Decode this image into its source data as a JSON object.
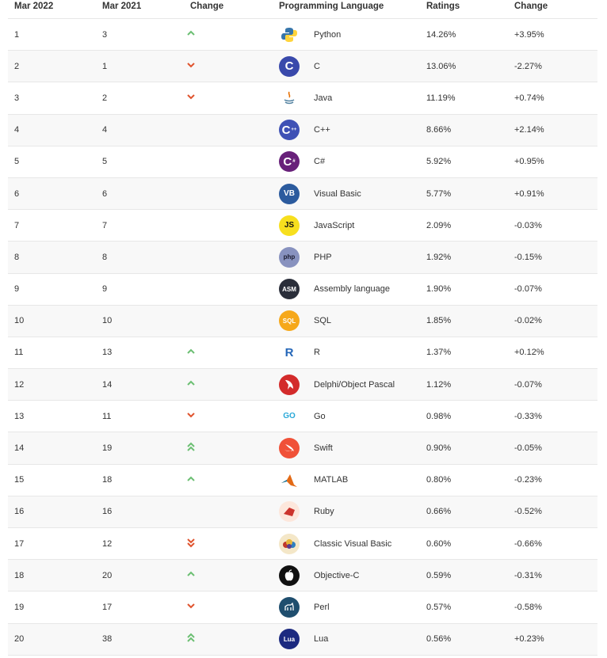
{
  "headers": [
    "Mar 2022",
    "Mar 2021",
    "Change",
    "Programming Language",
    "Ratings",
    "Change"
  ],
  "colors": {
    "up": "#6cbf73",
    "down": "#e0542e"
  },
  "rows": [
    {
      "now": "1",
      "prev": "3",
      "dir": "up",
      "lang": "Python",
      "rating": "14.26%",
      "change": "+3.95%",
      "icon": "python-logo-icon"
    },
    {
      "now": "2",
      "prev": "1",
      "dir": "down",
      "lang": "C",
      "rating": "13.06%",
      "change": "-2.27%",
      "icon": "c-logo-icon"
    },
    {
      "now": "3",
      "prev": "2",
      "dir": "down",
      "lang": "Java",
      "rating": "11.19%",
      "change": "+0.74%",
      "icon": "java-logo-icon"
    },
    {
      "now": "4",
      "prev": "4",
      "dir": "none",
      "lang": "C++",
      "rating": "8.66%",
      "change": "+2.14%",
      "icon": "cpp-logo-icon"
    },
    {
      "now": "5",
      "prev": "5",
      "dir": "none",
      "lang": "C#",
      "rating": "5.92%",
      "change": "+0.95%",
      "icon": "csharp-logo-icon"
    },
    {
      "now": "6",
      "prev": "6",
      "dir": "none",
      "lang": "Visual Basic",
      "rating": "5.77%",
      "change": "+0.91%",
      "icon": "visual-basic-logo-icon"
    },
    {
      "now": "7",
      "prev": "7",
      "dir": "none",
      "lang": "JavaScript",
      "rating": "2.09%",
      "change": "-0.03%",
      "icon": "javascript-logo-icon"
    },
    {
      "now": "8",
      "prev": "8",
      "dir": "none",
      "lang": "PHP",
      "rating": "1.92%",
      "change": "-0.15%",
      "icon": "php-logo-icon"
    },
    {
      "now": "9",
      "prev": "9",
      "dir": "none",
      "lang": "Assembly language",
      "rating": "1.90%",
      "change": "-0.07%",
      "icon": "assembly-logo-icon"
    },
    {
      "now": "10",
      "prev": "10",
      "dir": "none",
      "lang": "SQL",
      "rating": "1.85%",
      "change": "-0.02%",
      "icon": "sql-logo-icon"
    },
    {
      "now": "11",
      "prev": "13",
      "dir": "up",
      "lang": "R",
      "rating": "1.37%",
      "change": "+0.12%",
      "icon": "r-logo-icon"
    },
    {
      "now": "12",
      "prev": "14",
      "dir": "up",
      "lang": "Delphi/Object Pascal",
      "rating": "1.12%",
      "change": "-0.07%",
      "icon": "delphi-logo-icon"
    },
    {
      "now": "13",
      "prev": "11",
      "dir": "down",
      "lang": "Go",
      "rating": "0.98%",
      "change": "-0.33%",
      "icon": "go-logo-icon"
    },
    {
      "now": "14",
      "prev": "19",
      "dir": "up2",
      "lang": "Swift",
      "rating": "0.90%",
      "change": "-0.05%",
      "icon": "swift-logo-icon"
    },
    {
      "now": "15",
      "prev": "18",
      "dir": "up",
      "lang": "MATLAB",
      "rating": "0.80%",
      "change": "-0.23%",
      "icon": "matlab-logo-icon"
    },
    {
      "now": "16",
      "prev": "16",
      "dir": "none",
      "lang": "Ruby",
      "rating": "0.66%",
      "change": "-0.52%",
      "icon": "ruby-logo-icon"
    },
    {
      "now": "17",
      "prev": "12",
      "dir": "down2",
      "lang": "Classic Visual Basic",
      "rating": "0.60%",
      "change": "-0.66%",
      "icon": "classic-vb-logo-icon"
    },
    {
      "now": "18",
      "prev": "20",
      "dir": "up",
      "lang": "Objective-C",
      "rating": "0.59%",
      "change": "-0.31%",
      "icon": "objective-c-logo-icon"
    },
    {
      "now": "19",
      "prev": "17",
      "dir": "down",
      "lang": "Perl",
      "rating": "0.57%",
      "change": "-0.58%",
      "icon": "perl-logo-icon"
    },
    {
      "now": "20",
      "prev": "38",
      "dir": "up2",
      "lang": "Lua",
      "rating": "0.56%",
      "change": "+0.23%",
      "icon": "lua-logo-icon"
    }
  ],
  "logos": {
    "python-logo-icon": {
      "bg": "#ffffff",
      "text": "",
      "color": "#3776ab"
    },
    "c-logo-icon": {
      "bg": "#3949ab",
      "text": "C",
      "color": "#ffffff"
    },
    "java-logo-icon": {
      "bg": "#ffffff",
      "text": "",
      "color": "#e76f00"
    },
    "cpp-logo-icon": {
      "bg": "#3f51b5",
      "text": "C",
      "color": "#ffffff"
    },
    "csharp-logo-icon": {
      "bg": "#68217a",
      "text": "C",
      "color": "#ffffff"
    },
    "visual-basic-logo-icon": {
      "bg": "#2c5b9e",
      "text": "VB",
      "color": "#ffffff"
    },
    "javascript-logo-icon": {
      "bg": "#f7df1e",
      "text": "JS",
      "color": "#111111"
    },
    "php-logo-icon": {
      "bg": "#8892bf",
      "text": "php",
      "color": "#1b1b2e"
    },
    "assembly-logo-icon": {
      "bg": "#2a2e3a",
      "text": "ASM",
      "color": "#ffffff"
    },
    "sql-logo-icon": {
      "bg": "#f6a81a",
      "text": "SQL",
      "color": "#ffffff"
    },
    "r-logo-icon": {
      "bg": "#ffffff",
      "text": "R",
      "color": "#2466b8"
    },
    "delphi-logo-icon": {
      "bg": "#d32b2b",
      "text": "",
      "color": "#ffffff"
    },
    "go-logo-icon": {
      "bg": "#ffffff",
      "text": "GO",
      "color": "#29a8d8"
    },
    "swift-logo-icon": {
      "bg": "#f05138",
      "text": "",
      "color": "#ffffff"
    },
    "matlab-logo-icon": {
      "bg": "#ffffff",
      "text": "",
      "color": "#e36a16"
    },
    "ruby-logo-icon": {
      "bg": "#fde7dc",
      "text": "",
      "color": "#cc342d"
    },
    "classic-vb-logo-icon": {
      "bg": "#f4e7c8",
      "text": "",
      "color": "#5a3d8c"
    },
    "objective-c-logo-icon": {
      "bg": "#111111",
      "text": "",
      "color": "#ffffff"
    },
    "perl-logo-icon": {
      "bg": "#1f4e6e",
      "text": "",
      "color": "#ffffff"
    },
    "lua-logo-icon": {
      "bg": "#1c2a80",
      "text": "Lua",
      "color": "#ffffff"
    }
  }
}
